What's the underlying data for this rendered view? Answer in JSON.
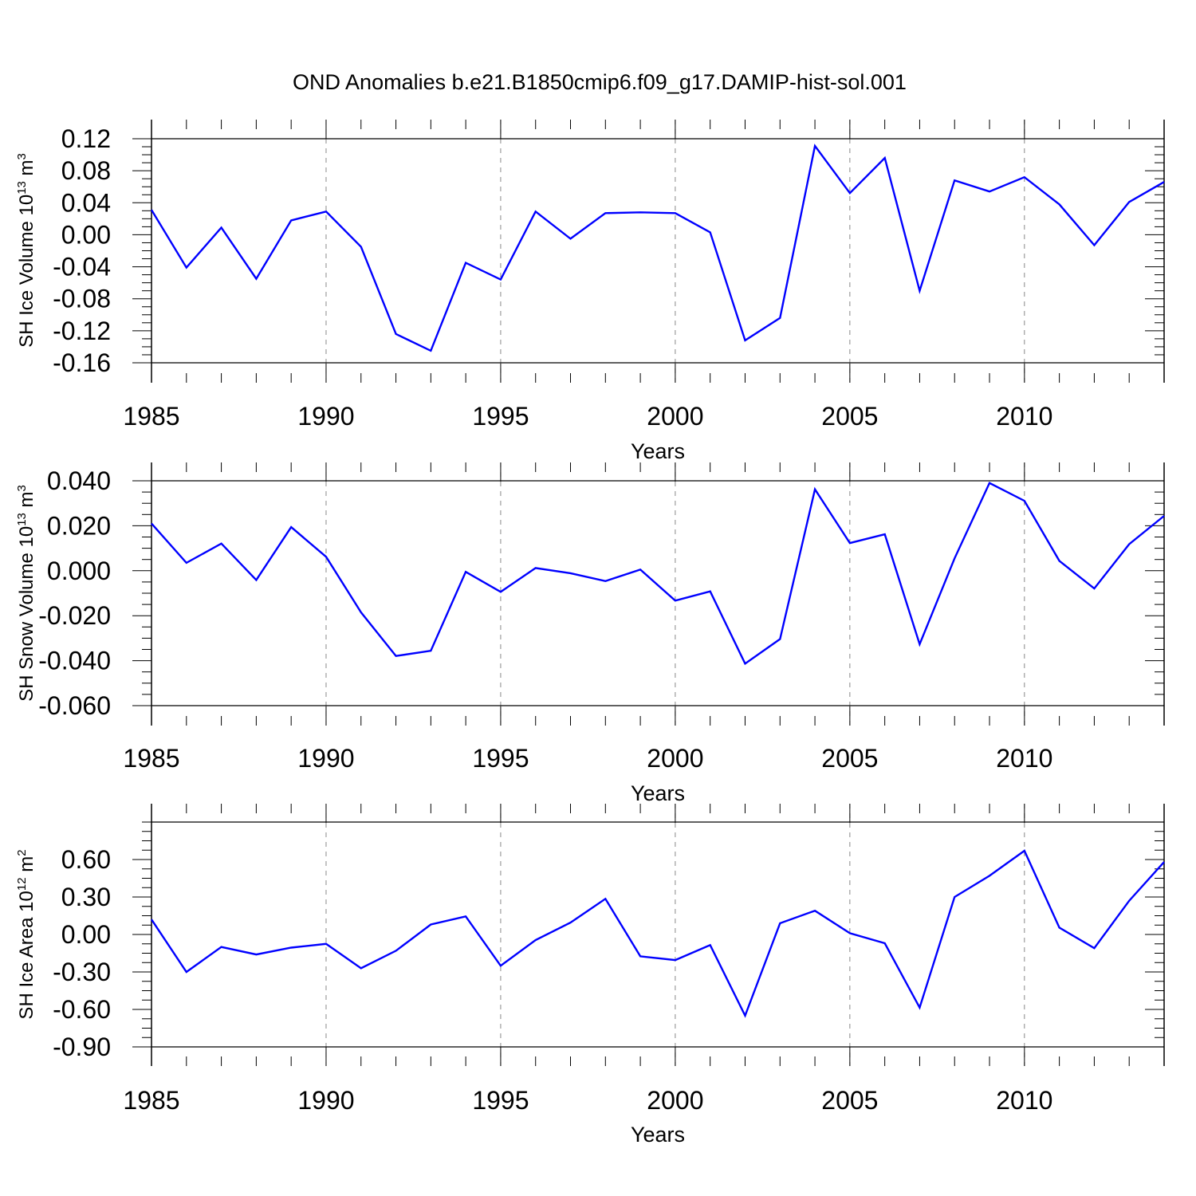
{
  "title": "OND Anomalies b.e21.B1850cmip6.f09_g17.DAMIP-hist-sol.001",
  "chart_data": [
    {
      "type": "line",
      "ylabel": {
        "prefix": "SH Ice Volume 10",
        "exp": "13",
        "unit": " m",
        "unit_exp": "3"
      },
      "xlabel": "Years",
      "xlim": [
        1985,
        2014
      ],
      "ylim": [
        -0.16,
        0.12
      ],
      "yticks": [
        0.12,
        0.08,
        0.04,
        0.0,
        -0.04,
        -0.08,
        -0.12,
        -0.16
      ],
      "ytick_labels": [
        "0.12",
        "0.08",
        "0.04",
        "0.00",
        "-0.04",
        "-0.08",
        "-0.12",
        "-0.16"
      ],
      "xticks": [
        1985,
        1990,
        1995,
        2000,
        2005,
        2010
      ],
      "xtick_labels": [
        "1985",
        "1990",
        "1995",
        "2000",
        "2005",
        "2010"
      ],
      "line_color": "#0000ff",
      "x": [
        1985,
        1986,
        1987,
        1988,
        1989,
        1990,
        1991,
        1992,
        1993,
        1994,
        1995,
        1996,
        1997,
        1998,
        1999,
        2000,
        2001,
        2002,
        2003,
        2004,
        2005,
        2006,
        2007,
        2008,
        2009,
        2010,
        2011,
        2012,
        2013,
        2014
      ],
      "values": [
        0.031,
        -0.041,
        0.009,
        -0.055,
        0.018,
        0.029,
        -0.015,
        -0.124,
        -0.145,
        -0.035,
        -0.056,
        0.029,
        -0.005,
        0.027,
        0.028,
        0.027,
        0.003,
        -0.132,
        -0.104,
        0.111,
        0.052,
        0.096,
        -0.07,
        0.068,
        0.054,
        0.072,
        0.038,
        -0.013,
        0.041,
        0.066
      ]
    },
    {
      "type": "line",
      "ylabel": {
        "prefix": "SH Snow Volume 10",
        "exp": "13",
        "unit": " m",
        "unit_exp": "3"
      },
      "xlabel": "Years",
      "xlim": [
        1985,
        2014
      ],
      "ylim": [
        -0.06,
        0.04
      ],
      "yticks": [
        0.04,
        0.02,
        0.0,
        -0.02,
        -0.04,
        -0.06
      ],
      "ytick_labels": [
        "0.040",
        "0.020",
        "0.000",
        "-0.020",
        "-0.040",
        "-0.060"
      ],
      "xticks": [
        1985,
        1990,
        1995,
        2000,
        2005,
        2010
      ],
      "xtick_labels": [
        "1985",
        "1990",
        "1995",
        "2000",
        "2005",
        "2010"
      ],
      "line_color": "#0000ff",
      "x": [
        1985,
        1986,
        1987,
        1988,
        1989,
        1990,
        1991,
        1992,
        1993,
        1994,
        1995,
        1996,
        1997,
        1998,
        1999,
        2000,
        2001,
        2002,
        2003,
        2004,
        2005,
        2006,
        2007,
        2008,
        2009,
        2010,
        2011,
        2012,
        2013,
        2014
      ],
      "values": [
        0.021,
        0.0035,
        0.0121,
        -0.0041,
        0.0194,
        0.0062,
        -0.0185,
        -0.0379,
        -0.0356,
        -0.0005,
        -0.0094,
        0.0012,
        -0.0011,
        -0.0046,
        0.0005,
        -0.0133,
        -0.0092,
        -0.0413,
        -0.0304,
        0.0362,
        0.0123,
        0.0162,
        -0.0327,
        0.0055,
        0.039,
        0.0311,
        0.0044,
        -0.0079,
        0.0118,
        0.0244
      ]
    },
    {
      "type": "line",
      "ylabel": {
        "prefix": "SH Ice Area 10",
        "exp": "12",
        "unit": " m",
        "unit_exp": "2"
      },
      "xlabel": "Years",
      "xlim": [
        1985,
        2014
      ],
      "ylim": [
        -0.9,
        0.9
      ],
      "yticks": [
        0.6,
        0.3,
        0.0,
        -0.3,
        -0.6,
        -0.9
      ],
      "ytick_labels": [
        "0.60",
        "0.30",
        "0.00",
        "-0.30",
        "-0.60",
        "-0.90"
      ],
      "xticks": [
        1985,
        1990,
        1995,
        2000,
        2005,
        2010
      ],
      "xtick_labels": [
        "1985",
        "1990",
        "1995",
        "2000",
        "2005",
        "2010"
      ],
      "line_color": "#0000ff",
      "x": [
        1985,
        1986,
        1987,
        1988,
        1989,
        1990,
        1991,
        1992,
        1993,
        1994,
        1995,
        1996,
        1997,
        1998,
        1999,
        2000,
        2001,
        2002,
        2003,
        2004,
        2005,
        2006,
        2007,
        2008,
        2009,
        2010,
        2011,
        2012,
        2013,
        2014
      ],
      "values": [
        0.12,
        -0.3,
        -0.1,
        -0.16,
        -0.105,
        -0.075,
        -0.27,
        -0.13,
        0.08,
        0.145,
        -0.25,
        -0.045,
        0.095,
        0.285,
        -0.175,
        -0.205,
        -0.085,
        -0.65,
        0.09,
        0.19,
        0.01,
        -0.07,
        -0.585,
        0.3,
        0.47,
        0.67,
        0.055,
        -0.11,
        0.27,
        0.58
      ]
    }
  ]
}
